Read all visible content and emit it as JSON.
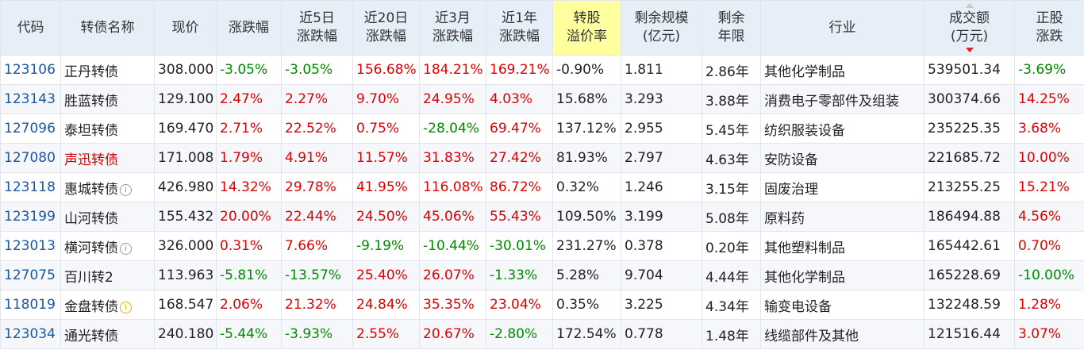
{
  "columns": [
    "代码",
    "转债名称",
    "现价",
    "涨跌幅",
    "近5日\n涨跌幅",
    "近20日\n涨跌幅",
    "近3月\n涨跌幅",
    "近1年\n涨跌幅",
    "转股\n溢价率",
    "剩余规模\n(亿元)",
    "剩余\n年限",
    "行业",
    "成交额\n(万元)",
    "正股\n涨跌"
  ],
  "rows": [
    {
      "code": "123106",
      "name": "正丹转债",
      "name_color": "normal",
      "info": "none",
      "price": "308.000",
      "chg": "-3.05%",
      "d5": "-3.05%",
      "d20": "156.68%",
      "m3": "184.21%",
      "y1": "169.21%",
      "premium": "-0.90%",
      "scale": "1.811",
      "years": "2.86年",
      "industry": "其他化学制品",
      "turnover": "539501.34",
      "stock_chg": "-3.69%"
    },
    {
      "code": "123143",
      "name": "胜蓝转债",
      "name_color": "normal",
      "info": "none",
      "price": "129.100",
      "chg": "2.47%",
      "d5": "2.27%",
      "d20": "9.70%",
      "m3": "24.95%",
      "y1": "4.03%",
      "premium": "15.68%",
      "scale": "3.293",
      "years": "3.88年",
      "industry": "消费电子零部件及组装",
      "turnover": "300374.66",
      "stock_chg": "14.25%"
    },
    {
      "code": "127096",
      "name": "泰坦转债",
      "name_color": "normal",
      "info": "none",
      "price": "169.470",
      "chg": "2.71%",
      "d5": "22.52%",
      "d20": "0.75%",
      "m3": "-28.04%",
      "y1": "69.47%",
      "premium": "137.12%",
      "scale": "2.955",
      "years": "5.45年",
      "industry": "纺织服装设备",
      "turnover": "235225.35",
      "stock_chg": "3.68%"
    },
    {
      "code": "127080",
      "name": "声迅转债",
      "name_color": "red",
      "info": "none",
      "price": "171.008",
      "chg": "1.79%",
      "d5": "4.91%",
      "d20": "11.57%",
      "m3": "31.83%",
      "y1": "27.42%",
      "premium": "81.93%",
      "scale": "2.797",
      "years": "4.63年",
      "industry": "安防设备",
      "turnover": "221685.72",
      "stock_chg": "10.00%"
    },
    {
      "code": "123118",
      "name": "惠城转债",
      "name_color": "normal",
      "info": "gray",
      "price": "426.980",
      "chg": "14.32%",
      "d5": "29.78%",
      "d20": "41.95%",
      "m3": "116.08%",
      "y1": "86.72%",
      "premium": "0.32%",
      "scale": "1.246",
      "years": "3.15年",
      "industry": "固废治理",
      "turnover": "213255.25",
      "stock_chg": "15.21%"
    },
    {
      "code": "123199",
      "name": "山河转债",
      "name_color": "normal",
      "info": "none",
      "price": "155.432",
      "chg": "20.00%",
      "d5": "22.44%",
      "d20": "24.50%",
      "m3": "45.06%",
      "y1": "55.43%",
      "premium": "109.50%",
      "scale": "3.199",
      "years": "5.08年",
      "industry": "原料药",
      "turnover": "186494.88",
      "stock_chg": "4.56%"
    },
    {
      "code": "123013",
      "name": "横河转债",
      "name_color": "normal",
      "info": "gray",
      "price": "326.000",
      "chg": "0.31%",
      "d5": "7.66%",
      "d20": "-9.19%",
      "m3": "-10.44%",
      "y1": "-30.01%",
      "premium": "231.27%",
      "scale": "0.378",
      "years": "0.20年",
      "industry": "其他塑料制品",
      "turnover": "165442.61",
      "stock_chg": "0.70%"
    },
    {
      "code": "127075",
      "name": "百川转2",
      "name_color": "normal",
      "info": "none",
      "price": "113.963",
      "chg": "-5.81%",
      "d5": "-13.57%",
      "d20": "25.40%",
      "m3": "26.07%",
      "y1": "-1.33%",
      "premium": "5.28%",
      "scale": "9.704",
      "years": "4.44年",
      "industry": "其他化学制品",
      "turnover": "165228.69",
      "stock_chg": "-10.00%"
    },
    {
      "code": "118019",
      "name": "金盘转债",
      "name_color": "normal",
      "info": "yellow",
      "price": "168.547",
      "chg": "2.06%",
      "d5": "21.32%",
      "d20": "24.84%",
      "m3": "35.35%",
      "y1": "23.04%",
      "premium": "0.35%",
      "scale": "3.225",
      "years": "4.34年",
      "industry": "输变电设备",
      "turnover": "132248.59",
      "stock_chg": "1.28%"
    },
    {
      "code": "123034",
      "name": "通光转债",
      "name_color": "normal",
      "info": "none",
      "price": "240.180",
      "chg": "-5.44%",
      "d5": "-3.93%",
      "d20": "2.55%",
      "m3": "20.67%",
      "y1": "-2.80%",
      "premium": "172.54%",
      "scale": "0.778",
      "years": "1.48年",
      "industry": "线缆部件及其他",
      "turnover": "121516.44",
      "stock_chg": "3.07%"
    }
  ],
  "icons": {
    "info": "info-circle-icon",
    "sort": "sort-desc-icon"
  },
  "colors": {
    "up": "#e00000",
    "down": "#008a00",
    "code": "#1a57a6",
    "header_bg": "#e6eef8",
    "highlight": "#ffff9f"
  }
}
